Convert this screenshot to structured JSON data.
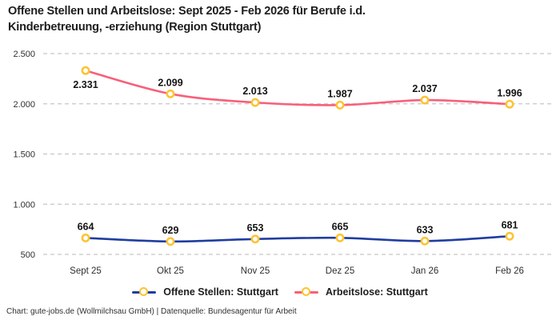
{
  "title": {
    "line1": "Offene Stellen und Arbeitslose: Sept 2025 - Feb 2026 für Berufe i.d.",
    "line2": "Kinderbetreuung, -erziehung (Region Stuttgart)"
  },
  "footer": "Chart: gute-jobs.de (Wollmilchsau GmbH) | Datenquelle: Bundesagentur für Arbeit",
  "legend": [
    {
      "label": "Offene Stellen: Stuttgart",
      "color": "#203da0"
    },
    {
      "label": "Arbeitslose: Stuttgart",
      "color": "#f8607a"
    }
  ],
  "colors": {
    "grid": "#c6c6c6",
    "axis_text": "#2e2e2e",
    "title_text": "#1d1d1d",
    "marker_fill": "#ffffff",
    "marker_stroke": "#fdc330"
  },
  "chart_data": {
    "type": "line",
    "title": "Offene Stellen und Arbeitslose: Sept 2025 - Feb 2026 für Berufe i.d. Kinderbetreuung, -erziehung (Region Stuttgart)",
    "categories": [
      "Sept 25",
      "Okt 25",
      "Nov 25",
      "Dez 25",
      "Jan 26",
      "Feb 26"
    ],
    "series": [
      {
        "name": "Offene Stellen: Stuttgart",
        "values": [
          664,
          629,
          653,
          665,
          633,
          681
        ],
        "labels": [
          "664",
          "629",
          "653",
          "665",
          "633",
          "681"
        ],
        "color": "#203da0"
      },
      {
        "name": "Arbeitslose: Stuttgart",
        "values": [
          2331,
          2099,
          2013,
          1987,
          2037,
          1996
        ],
        "labels": [
          "2.331",
          "2.099",
          "2.013",
          "1.987",
          "2.037",
          "1.996"
        ],
        "color": "#f8607a"
      }
    ],
    "xlabel": "",
    "ylabel": "",
    "ylim": [
      500,
      2500
    ],
    "y_ticks": [
      2500,
      2000,
      1500,
      1000,
      500
    ],
    "y_tick_labels": [
      "2.500",
      "2.000",
      "1.500",
      "1.000",
      "500"
    ],
    "grid": true,
    "legend_position": "bottom",
    "marker_style": "open-circle"
  }
}
